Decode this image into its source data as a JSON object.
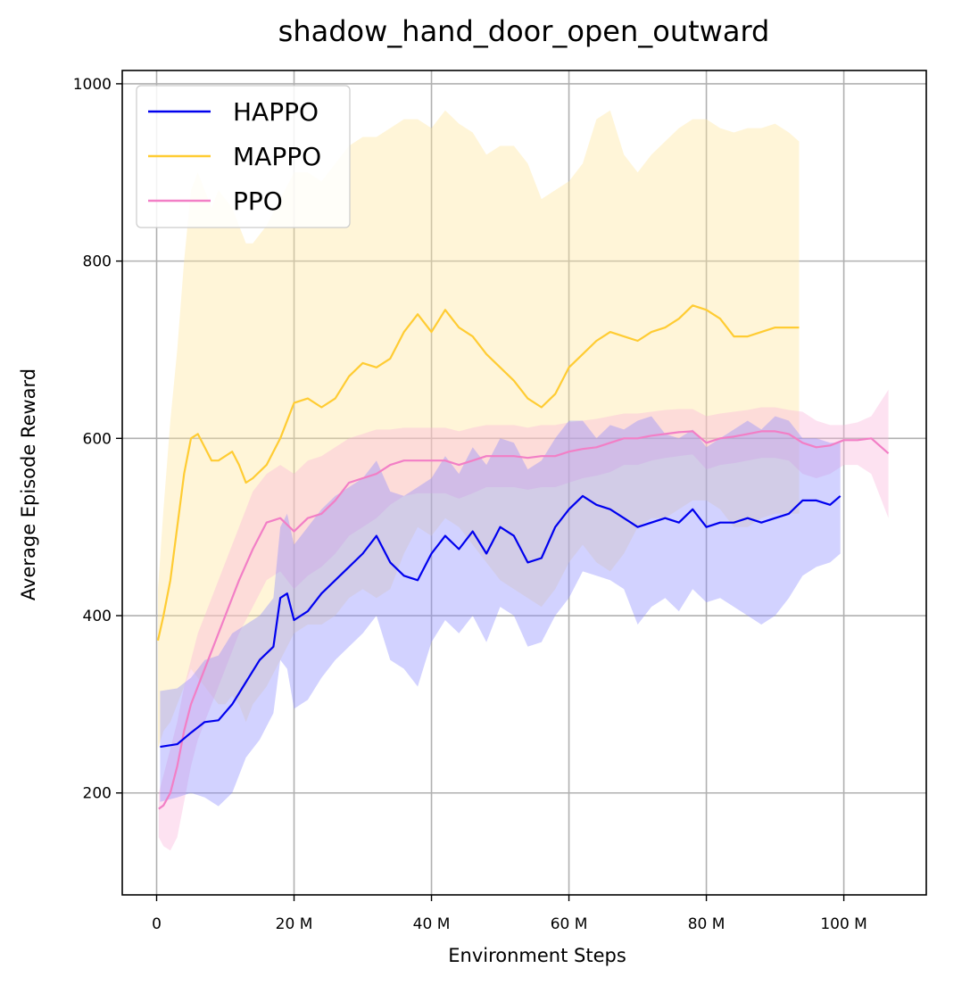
{
  "chart_data": {
    "type": "line",
    "title": "shadow_hand_door_open_outward",
    "xlabel": "Environment Steps",
    "ylabel": "Average Episode Reward",
    "xlim": [
      -5,
      112
    ],
    "ylim": [
      85,
      1015
    ],
    "x_ticks": [
      0,
      20,
      40,
      60,
      80,
      100
    ],
    "x_tick_labels": [
      "0",
      "20 M",
      "40 M",
      "60 M",
      "80 M",
      "100 M"
    ],
    "y_ticks": [
      200,
      400,
      600,
      800,
      1000
    ],
    "y_tick_labels": [
      "200",
      "400",
      "600",
      "800",
      "1000"
    ],
    "grid": true,
    "legend_position": "top-left",
    "series": [
      {
        "name": "HAPPO",
        "color": "#0000ee",
        "band_color": "#8888ff",
        "x": [
          0.5,
          3,
          5,
          7,
          9,
          11,
          13,
          15,
          17,
          18,
          19,
          20,
          22,
          24,
          26,
          28,
          30,
          32,
          34,
          36,
          38,
          40,
          42,
          44,
          46,
          48,
          50,
          52,
          54,
          56,
          58,
          60,
          62,
          64,
          66,
          68,
          70,
          72,
          74,
          76,
          78,
          80,
          82,
          84,
          86,
          88,
          90,
          92,
          94,
          96,
          98,
          99.5
        ],
        "y": [
          252,
          255,
          268,
          280,
          282,
          300,
          325,
          350,
          365,
          420,
          425,
          395,
          405,
          425,
          440,
          455,
          470,
          490,
          460,
          445,
          440,
          470,
          490,
          475,
          495,
          470,
          500,
          490,
          460,
          465,
          500,
          520,
          535,
          525,
          520,
          510,
          500,
          505,
          510,
          505,
          520,
          500,
          505,
          505,
          510,
          505,
          510,
          515,
          530,
          530,
          525,
          535
        ],
        "upper": [
          315,
          318,
          330,
          350,
          355,
          380,
          390,
          400,
          420,
          500,
          515,
          480,
          500,
          520,
          535,
          545,
          555,
          575,
          540,
          535,
          545,
          555,
          580,
          560,
          590,
          570,
          600,
          595,
          565,
          575,
          600,
          620,
          620,
          600,
          615,
          610,
          620,
          625,
          605,
          600,
          610,
          590,
          600,
          610,
          620,
          610,
          625,
          620,
          600,
          600,
          595,
          595
        ],
        "lower": [
          190,
          195,
          200,
          195,
          185,
          200,
          240,
          260,
          290,
          350,
          340,
          295,
          305,
          330,
          350,
          365,
          380,
          400,
          350,
          340,
          320,
          370,
          395,
          380,
          400,
          370,
          410,
          400,
          365,
          370,
          400,
          420,
          450,
          445,
          440,
          430,
          390,
          410,
          420,
          405,
          430,
          415,
          420,
          410,
          400,
          390,
          400,
          420,
          445,
          455,
          460,
          470
        ]
      },
      {
        "name": "MAPPO",
        "color": "#ffcc33",
        "band_color": "#ffe699",
        "x": [
          0.2,
          1,
          2,
          3,
          4,
          5,
          6,
          7,
          8,
          9,
          10,
          11,
          12,
          13,
          14,
          16,
          18,
          20,
          22,
          24,
          26,
          28,
          30,
          32,
          34,
          36,
          38,
          40,
          42,
          44,
          46,
          48,
          50,
          52,
          54,
          56,
          58,
          60,
          62,
          64,
          66,
          68,
          70,
          72,
          74,
          76,
          78,
          80,
          82,
          84,
          86,
          88,
          90,
          92,
          93.5
        ],
        "y": [
          372,
          400,
          440,
          500,
          560,
          600,
          605,
          590,
          575,
          575,
          580,
          585,
          570,
          550,
          555,
          570,
          600,
          640,
          645,
          635,
          645,
          670,
          685,
          680,
          690,
          720,
          740,
          720,
          745,
          725,
          715,
          695,
          680,
          665,
          645,
          635,
          650,
          680,
          695,
          710,
          720,
          715,
          710,
          720,
          725,
          735,
          750,
          745,
          735,
          715,
          715,
          720,
          725,
          725,
          725
        ],
        "upper": [
          430,
          520,
          620,
          700,
          800,
          880,
          900,
          880,
          860,
          880,
          870,
          860,
          840,
          820,
          820,
          840,
          870,
          900,
          900,
          890,
          910,
          930,
          940,
          940,
          950,
          960,
          960,
          950,
          970,
          955,
          945,
          920,
          930,
          930,
          910,
          870,
          880,
          890,
          910,
          960,
          970,
          920,
          900,
          920,
          935,
          950,
          960,
          960,
          950,
          945,
          950,
          950,
          955,
          945,
          935
        ],
        "lower": [
          250,
          270,
          280,
          300,
          320,
          340,
          330,
          320,
          310,
          300,
          300,
          310,
          300,
          280,
          300,
          320,
          350,
          380,
          390,
          390,
          400,
          420,
          430,
          420,
          430,
          470,
          500,
          490,
          510,
          500,
          480,
          460,
          440,
          430,
          420,
          410,
          430,
          460,
          480,
          460,
          450,
          470,
          500,
          510,
          510,
          520,
          530,
          530,
          520,
          500,
          500,
          510,
          515,
          515,
          515
        ]
      },
      {
        "name": "PPO",
        "color": "#f27fc6",
        "band_color": "#f9b3d9",
        "x": [
          0.3,
          1,
          2,
          3,
          4,
          5,
          6,
          8,
          10,
          12,
          14,
          16,
          18,
          20,
          22,
          24,
          26,
          28,
          30,
          32,
          34,
          36,
          38,
          40,
          42,
          44,
          46,
          48,
          50,
          52,
          54,
          56,
          58,
          60,
          62,
          64,
          66,
          68,
          70,
          72,
          74,
          76,
          78,
          80,
          82,
          84,
          86,
          88,
          90,
          92,
          94,
          96,
          98,
          100,
          102,
          104,
          106.5
        ],
        "y": [
          182,
          186,
          200,
          230,
          270,
          300,
          320,
          360,
          400,
          440,
          475,
          505,
          510,
          495,
          510,
          515,
          530,
          550,
          555,
          560,
          570,
          575,
          575,
          575,
          575,
          570,
          575,
          580,
          580,
          580,
          578,
          580,
          580,
          585,
          588,
          590,
          595,
          600,
          600,
          603,
          605,
          607,
          608,
          595,
          600,
          602,
          605,
          608,
          608,
          605,
          595,
          590,
          592,
          598,
          598,
          600,
          583
        ],
        "upper": [
          200,
          220,
          250,
          280,
          320,
          350,
          380,
          420,
          460,
          500,
          540,
          560,
          570,
          560,
          575,
          580,
          590,
          600,
          605,
          610,
          610,
          612,
          612,
          612,
          612,
          608,
          612,
          615,
          615,
          615,
          612,
          615,
          615,
          618,
          620,
          622,
          625,
          628,
          628,
          630,
          632,
          633,
          633,
          625,
          628,
          630,
          632,
          635,
          635,
          632,
          630,
          620,
          615,
          615,
          618,
          625,
          655
        ],
        "lower": [
          150,
          140,
          135,
          150,
          190,
          230,
          260,
          300,
          340,
          380,
          410,
          440,
          450,
          430,
          445,
          455,
          470,
          490,
          500,
          510,
          525,
          535,
          538,
          538,
          538,
          532,
          538,
          545,
          545,
          545,
          542,
          545,
          545,
          550,
          555,
          558,
          562,
          570,
          570,
          575,
          578,
          580,
          582,
          565,
          570,
          572,
          575,
          578,
          578,
          575,
          560,
          555,
          560,
          570,
          570,
          560,
          510
        ]
      }
    ]
  }
}
